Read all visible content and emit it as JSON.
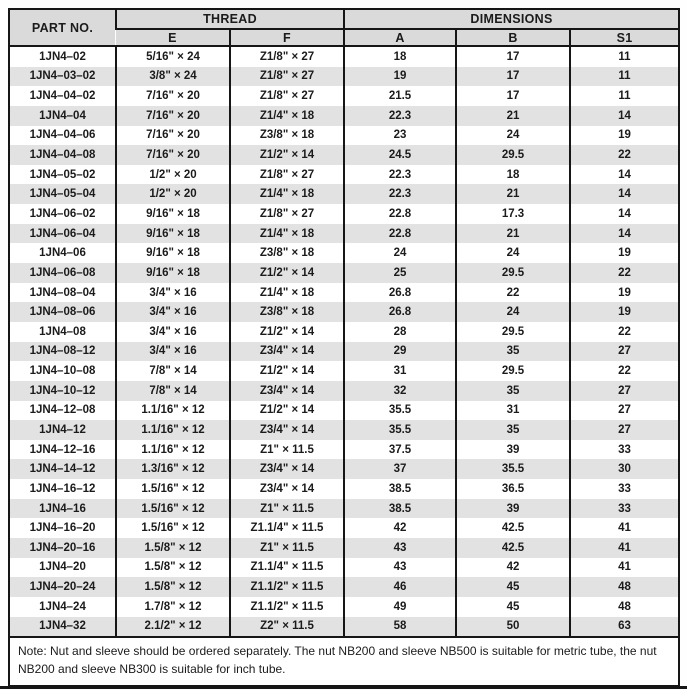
{
  "table": {
    "header": {
      "part_no": "PART NO.",
      "thread": "THREAD",
      "dimensions": "DIMENSIONS",
      "sub": [
        "E",
        "F",
        "A",
        "B",
        "S1"
      ]
    },
    "rows": [
      [
        "1JN4–02",
        "5/16\" × 24",
        "Z1/8\" × 27",
        "18",
        "17",
        "11"
      ],
      [
        "1JN4–03–02",
        "3/8\" × 24",
        "Z1/8\" × 27",
        "19",
        "17",
        "11"
      ],
      [
        "1JN4–04–02",
        "7/16\" × 20",
        "Z1/8\" × 27",
        "21.5",
        "17",
        "11"
      ],
      [
        "1JN4–04",
        "7/16\" × 20",
        "Z1/4\" × 18",
        "22.3",
        "21",
        "14"
      ],
      [
        "1JN4–04–06",
        "7/16\" × 20",
        "Z3/8\" × 18",
        "23",
        "24",
        "19"
      ],
      [
        "1JN4–04–08",
        "7/16\" × 20",
        "Z1/2\" × 14",
        "24.5",
        "29.5",
        "22"
      ],
      [
        "1JN4–05–02",
        "1/2\" × 20",
        "Z1/8\" × 27",
        "22.3",
        "18",
        "14"
      ],
      [
        "1JN4–05–04",
        "1/2\" × 20",
        "Z1/4\" × 18",
        "22.3",
        "21",
        "14"
      ],
      [
        "1JN4–06–02",
        "9/16\" × 18",
        "Z1/8\" × 27",
        "22.8",
        "17.3",
        "14"
      ],
      [
        "1JN4–06–04",
        "9/16\" × 18",
        "Z1/4\" × 18",
        "22.8",
        "21",
        "14"
      ],
      [
        "1JN4–06",
        "9/16\" × 18",
        "Z3/8\" × 18",
        "24",
        "24",
        "19"
      ],
      [
        "1JN4–06–08",
        "9/16\" × 18",
        "Z1/2\" × 14",
        "25",
        "29.5",
        "22"
      ],
      [
        "1JN4–08–04",
        "3/4\" × 16",
        "Z1/4\" × 18",
        "26.8",
        "22",
        "19"
      ],
      [
        "1JN4–08–06",
        "3/4\" × 16",
        "Z3/8\" × 18",
        "26.8",
        "24",
        "19"
      ],
      [
        "1JN4–08",
        "3/4\" × 16",
        "Z1/2\" × 14",
        "28",
        "29.5",
        "22"
      ],
      [
        "1JN4–08–12",
        "3/4\" × 16",
        "Z3/4\" × 14",
        "29",
        "35",
        "27"
      ],
      [
        "1JN4–10–08",
        "7/8\" × 14",
        "Z1/2\" × 14",
        "31",
        "29.5",
        "22"
      ],
      [
        "1JN4–10–12",
        "7/8\" × 14",
        "Z3/4\" × 14",
        "32",
        "35",
        "27"
      ],
      [
        "1JN4–12–08",
        "1.1/16\" × 12",
        "Z1/2\" × 14",
        "35.5",
        "31",
        "27"
      ],
      [
        "1JN4–12",
        "1.1/16\" × 12",
        "Z3/4\" × 14",
        "35.5",
        "35",
        "27"
      ],
      [
        "1JN4–12–16",
        "1.1/16\" × 12",
        "Z1\" × 11.5",
        "37.5",
        "39",
        "33"
      ],
      [
        "1JN4–14–12",
        "1.3/16\" × 12",
        "Z3/4\" × 14",
        "37",
        "35.5",
        "30"
      ],
      [
        "1JN4–16–12",
        "1.5/16\" × 12",
        "Z3/4\" × 14",
        "38.5",
        "36.5",
        "33"
      ],
      [
        "1JN4–16",
        "1.5/16\" × 12",
        "Z1\" × 11.5",
        "38.5",
        "39",
        "33"
      ],
      [
        "1JN4–16–20",
        "1.5/16\" × 12",
        "Z1.1/4\" × 11.5",
        "42",
        "42.5",
        "41"
      ],
      [
        "1JN4–20–16",
        "1.5/8\" × 12",
        "Z1\" × 11.5",
        "43",
        "42.5",
        "41"
      ],
      [
        "1JN4–20",
        "1.5/8\" × 12",
        "Z1.1/4\" × 11.5",
        "43",
        "42",
        "41"
      ],
      [
        "1JN4–20–24",
        "1.5/8\" × 12",
        "Z1.1/2\" × 11.5",
        "46",
        "45",
        "48"
      ],
      [
        "1JN4–24",
        "1.7/8\" × 12",
        "Z1.1/2\" × 11.5",
        "49",
        "45",
        "48"
      ],
      [
        "1JN4–32",
        "2.1/2\" × 12",
        "Z2\" × 11.5",
        "58",
        "50",
        "63"
      ]
    ]
  },
  "note": "Note: Nut and sleeve should be ordered separately. The nut NB200 and sleeve NB500 is suitable for metric tube, the nut NB200 and sleeve NB300 is suitable for inch tube.",
  "colors": {
    "border": "#161616",
    "header_bg": "#dadada",
    "stripe_bg": "#e2e2e2",
    "text": "#1b1b1b"
  }
}
